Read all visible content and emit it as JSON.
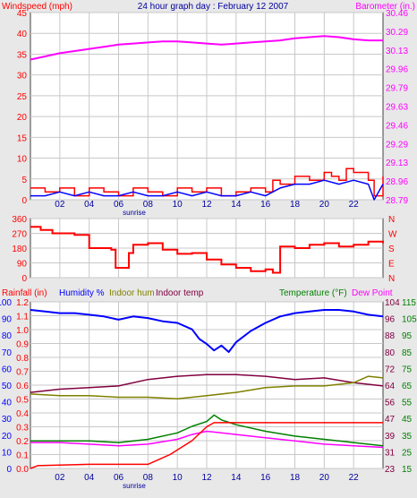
{
  "title": "24 hour graph day : February 12 2007",
  "colors": {
    "background": "#e8e8e8",
    "plot": "#ffffff",
    "wind": "#ff0000",
    "gust_fill": "#ff0000",
    "avg_wind": "#0000ff",
    "barometer": "#ff00ff",
    "direction": "#ff0000",
    "rain": "#ff0000",
    "humidity": "#0000ff",
    "indoor_humidity": "#808000",
    "indoor_temp": "#800040",
    "temperature": "#008000",
    "dew_point": "#ff00ff",
    "title": "#0000a0"
  },
  "chart_data": [
    {
      "type": "line",
      "name": "wind-barometer",
      "left_label": "Windspeed (mph)",
      "right_label": "Barometer (in.)",
      "left_ticks": [
        "45",
        "40",
        "35",
        "30",
        "25",
        "20",
        "15",
        "10",
        "5",
        "0"
      ],
      "right_ticks": [
        "30.46",
        "30.29",
        "30.13",
        "29.96",
        "29.79",
        "29.63",
        "29.46",
        "29.29",
        "29.13",
        "28.96",
        "28.79"
      ],
      "x_ticks": [
        "02",
        "04",
        "06",
        "08",
        "10",
        "12",
        "14",
        "16",
        "18",
        "20",
        "22"
      ],
      "x_note": "sunrise",
      "ylim_left": [
        0,
        48
      ],
      "ylim_right": [
        28.79,
        30.54
      ],
      "barometer": [
        [
          0,
          30.1
        ],
        [
          1,
          30.13
        ],
        [
          2,
          30.16
        ],
        [
          3,
          30.18
        ],
        [
          4,
          30.2
        ],
        [
          5,
          30.22
        ],
        [
          6,
          30.24
        ],
        [
          7,
          30.25
        ],
        [
          8,
          30.26
        ],
        [
          9,
          30.27
        ],
        [
          10,
          30.27
        ],
        [
          11,
          30.26
        ],
        [
          12,
          30.25
        ],
        [
          13,
          30.24
        ],
        [
          14,
          30.25
        ],
        [
          15,
          30.26
        ],
        [
          16,
          30.27
        ],
        [
          17,
          30.28
        ],
        [
          18,
          30.3
        ],
        [
          19,
          30.31
        ],
        [
          20,
          30.32
        ],
        [
          21,
          30.31
        ],
        [
          22,
          30.29
        ],
        [
          23,
          30.28
        ],
        [
          24,
          30.28
        ]
      ],
      "wind_gust": [
        [
          0,
          3
        ],
        [
          1,
          2
        ],
        [
          2,
          3
        ],
        [
          3,
          1
        ],
        [
          4,
          3
        ],
        [
          5,
          2
        ],
        [
          6,
          1
        ],
        [
          7,
          3
        ],
        [
          8,
          2
        ],
        [
          9,
          1
        ],
        [
          10,
          3
        ],
        [
          11,
          2
        ],
        [
          12,
          3
        ],
        [
          13,
          1
        ],
        [
          14,
          2
        ],
        [
          15,
          3
        ],
        [
          16,
          2
        ],
        [
          16.5,
          5
        ],
        [
          17,
          4
        ],
        [
          18,
          6
        ],
        [
          19,
          5
        ],
        [
          20,
          7
        ],
        [
          20.5,
          6
        ],
        [
          21,
          5
        ],
        [
          21.5,
          8
        ],
        [
          22,
          7
        ],
        [
          23,
          5
        ],
        [
          23.4,
          1
        ],
        [
          24,
          6
        ]
      ],
      "wind_avg": [
        [
          0,
          1
        ],
        [
          1,
          1
        ],
        [
          2,
          2
        ],
        [
          3,
          1
        ],
        [
          4,
          2
        ],
        [
          5,
          1
        ],
        [
          6,
          1
        ],
        [
          7,
          2
        ],
        [
          8,
          1
        ],
        [
          9,
          1
        ],
        [
          10,
          2
        ],
        [
          11,
          1
        ],
        [
          12,
          2
        ],
        [
          13,
          1
        ],
        [
          14,
          1
        ],
        [
          15,
          2
        ],
        [
          16,
          1
        ],
        [
          17,
          3
        ],
        [
          18,
          4
        ],
        [
          19,
          4
        ],
        [
          20,
          5
        ],
        [
          21,
          4
        ],
        [
          22,
          5
        ],
        [
          23,
          4
        ],
        [
          23.4,
          0
        ],
        [
          24,
          4
        ]
      ]
    },
    {
      "type": "line",
      "name": "wind-direction",
      "left_ticks": [
        "360",
        "270",
        "180",
        "90",
        "0"
      ],
      "right_ticks": [
        "N",
        "W",
        "S",
        "E",
        "N"
      ],
      "ylim": [
        0,
        360
      ],
      "direction": [
        [
          0,
          310
        ],
        [
          0.7,
          290
        ],
        [
          1.5,
          270
        ],
        [
          3,
          260
        ],
        [
          4,
          180
        ],
        [
          5.5,
          170
        ],
        [
          5.8,
          60
        ],
        [
          6.4,
          60
        ],
        [
          6.7,
          150
        ],
        [
          7,
          200
        ],
        [
          8,
          210
        ],
        [
          9,
          170
        ],
        [
          10,
          145
        ],
        [
          11,
          150
        ],
        [
          12,
          110
        ],
        [
          13,
          80
        ],
        [
          14,
          60
        ],
        [
          15,
          40
        ],
        [
          16,
          50
        ],
        [
          16.5,
          30
        ],
        [
          17,
          190
        ],
        [
          18,
          180
        ],
        [
          19,
          200
        ],
        [
          20,
          210
        ],
        [
          21,
          190
        ],
        [
          22,
          200
        ],
        [
          23,
          220
        ],
        [
          24,
          210
        ]
      ]
    },
    {
      "type": "line",
      "name": "rain-humidity-temperature",
      "legend": [
        "Rainfall (in)",
        "Humidity %",
        "Indoor hum",
        "Indoor temp",
        "Temperature (°F)",
        "Dew Point"
      ],
      "rain_ticks": [
        "1.2",
        "1.1",
        "1.0",
        "0.9",
        "0.8",
        "0.7",
        "0.6",
        "0.5",
        "0.4",
        "0.3",
        "0.2",
        "0.1",
        "0.0"
      ],
      "humidity_ticks": [
        "100",
        "90",
        "80",
        "70",
        "60",
        "50",
        "40",
        "30",
        "20",
        "10",
        "0"
      ],
      "indoor_temp_ticks": [
        "104",
        "96",
        "88",
        "80",
        "72",
        "64",
        "56",
        "47",
        "39",
        "31",
        "23"
      ],
      "temperature_ticks": [
        "115",
        "105",
        "95",
        "85",
        "75",
        "65",
        "55",
        "45",
        "35",
        "25",
        "15"
      ],
      "x_ticks": [
        "02",
        "04",
        "06",
        "08",
        "10",
        "12",
        "14",
        "16",
        "18",
        "20",
        "22"
      ],
      "x_note": "sunrise",
      "humidity_ylim": [
        0,
        103
      ],
      "temperature_ylim": [
        15,
        118
      ],
      "rainfall": [
        [
          0,
          0.0
        ],
        [
          0.5,
          0.02
        ],
        [
          4,
          0.03
        ],
        [
          8,
          0.03
        ],
        [
          9.5,
          0.1
        ],
        [
          11,
          0.2
        ],
        [
          12,
          0.3
        ],
        [
          12.5,
          0.33
        ],
        [
          24,
          0.33
        ]
      ],
      "humidity": [
        [
          0,
          98
        ],
        [
          1,
          97
        ],
        [
          2,
          96
        ],
        [
          3,
          96
        ],
        [
          4,
          95
        ],
        [
          5,
          94
        ],
        [
          6,
          92
        ],
        [
          7,
          94
        ],
        [
          8,
          93
        ],
        [
          9,
          91
        ],
        [
          10,
          90
        ],
        [
          11,
          86
        ],
        [
          11.5,
          80
        ],
        [
          12,
          77
        ],
        [
          12.5,
          73
        ],
        [
          13,
          76
        ],
        [
          13.5,
          72
        ],
        [
          14,
          78
        ],
        [
          15,
          85
        ],
        [
          16,
          90
        ],
        [
          17,
          94
        ],
        [
          18,
          96
        ],
        [
          19,
          97
        ],
        [
          20,
          98
        ],
        [
          21,
          98
        ],
        [
          22,
          97
        ],
        [
          23,
          95
        ],
        [
          24,
          94
        ]
      ],
      "indoor_humidity": [
        [
          0,
          46
        ],
        [
          2,
          45
        ],
        [
          4,
          45
        ],
        [
          6,
          44
        ],
        [
          8,
          44
        ],
        [
          10,
          43
        ],
        [
          12,
          45
        ],
        [
          14,
          47
        ],
        [
          16,
          50
        ],
        [
          18,
          51
        ],
        [
          20,
          51
        ],
        [
          22,
          53
        ],
        [
          23,
          57
        ],
        [
          24,
          56
        ]
      ],
      "indoor_temp": [
        [
          0,
          62
        ],
        [
          2,
          64
        ],
        [
          4,
          65
        ],
        [
          6,
          66
        ],
        [
          8,
          70
        ],
        [
          10,
          72
        ],
        [
          12,
          73
        ],
        [
          14,
          73
        ],
        [
          16,
          72
        ],
        [
          18,
          70
        ],
        [
          20,
          71
        ],
        [
          22,
          68
        ],
        [
          24,
          66
        ]
      ],
      "temperature": [
        [
          0,
          32
        ],
        [
          2,
          32
        ],
        [
          4,
          32
        ],
        [
          6,
          31
        ],
        [
          8,
          33
        ],
        [
          10,
          37
        ],
        [
          11,
          41
        ],
        [
          12,
          44
        ],
        [
          12.5,
          48
        ],
        [
          13,
          45
        ],
        [
          14,
          42
        ],
        [
          16,
          38
        ],
        [
          18,
          35
        ],
        [
          20,
          33
        ],
        [
          22,
          31
        ],
        [
          24,
          29
        ]
      ],
      "dew_point": [
        [
          0,
          31
        ],
        [
          2,
          31
        ],
        [
          4,
          30
        ],
        [
          6,
          29
        ],
        [
          8,
          30
        ],
        [
          10,
          33
        ],
        [
          11,
          36
        ],
        [
          12,
          38
        ],
        [
          13,
          37
        ],
        [
          14,
          36
        ],
        [
          16,
          34
        ],
        [
          18,
          32
        ],
        [
          20,
          30
        ],
        [
          22,
          29
        ],
        [
          24,
          28
        ]
      ]
    }
  ]
}
